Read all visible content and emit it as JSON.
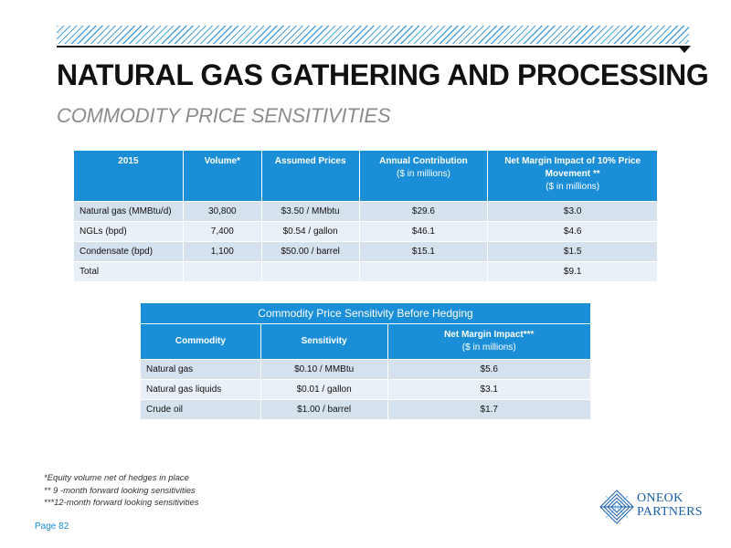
{
  "header": {
    "title": "NATURAL GAS GATHERING AND PROCESSING",
    "subtitle": "COMMODITY PRICE SENSITIVITIES"
  },
  "table1": {
    "headers": [
      {
        "title": "2015",
        "sub": ""
      },
      {
        "title": "Volume*",
        "sub": ""
      },
      {
        "title": "Assumed Prices",
        "sub": ""
      },
      {
        "title": "Annual Contribution",
        "sub": "($ in millions)"
      },
      {
        "title": "Net Margin Impact of 10% Price Movement **",
        "sub": "($ in millions)"
      }
    ],
    "rows": [
      [
        "Natural gas (MMBtu/d)",
        "30,800",
        "$3.50 / MMbtu",
        "$29.6",
        "$3.0"
      ],
      [
        "NGLs (bpd)",
        "7,400",
        "$0.54 / gallon",
        "$46.1",
        "$4.6"
      ],
      [
        "Condensate (bpd)",
        "1,100",
        "$50.00 / barrel",
        "$15.1",
        "$1.5"
      ],
      [
        "Total",
        "",
        "",
        "",
        "$9.1"
      ]
    ]
  },
  "table2": {
    "caption": "Commodity Price Sensitivity Before Hedging",
    "headers": [
      {
        "title": "Commodity",
        "sub": ""
      },
      {
        "title": "Sensitivity",
        "sub": ""
      },
      {
        "title": "Net Margin Impact***",
        "sub": "($ in millions)"
      }
    ],
    "rows": [
      [
        "Natural gas",
        "$0.10 / MMBtu",
        "$5.6"
      ],
      [
        "Natural gas liquids",
        "$0.01 / gallon",
        "$3.1"
      ],
      [
        "Crude oil",
        "$1.00 / barrel",
        "$1.7"
      ]
    ]
  },
  "footnotes": [
    "*Equity volume net of hedges in place",
    "** 9 -month forward looking sensitivities",
    "***12-month forward looking sensitivities"
  ],
  "page_label": "Page 82",
  "logo": {
    "line1": "ONEOK",
    "line2": "PARTNERS",
    "icon": "oneok-diamond-logo",
    "color": "#1a5ea8"
  },
  "colors": {
    "header_blue": "#1b8ed8",
    "row_dark": "#d6e1ee",
    "row_light": "#eaf0f7",
    "hatch": "#4aa3df"
  }
}
